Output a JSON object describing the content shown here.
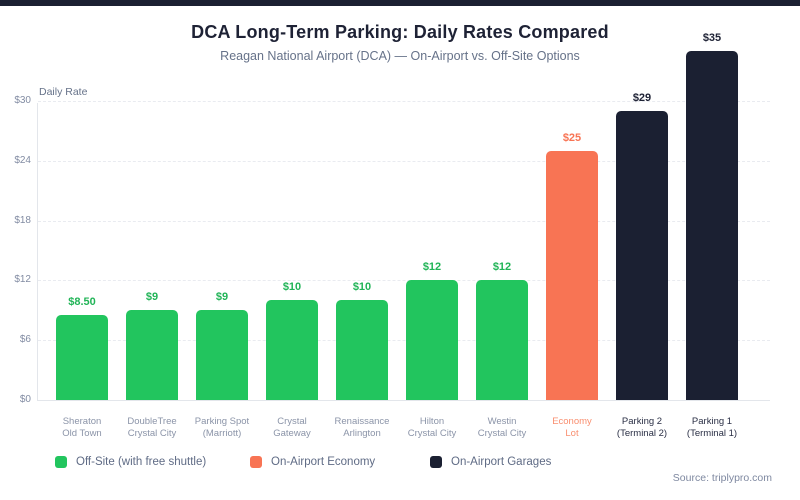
{
  "page": {
    "background_color": "#ffffff",
    "top_bar_color": "#1b2032"
  },
  "header": {
    "title": "DCA Long-Term Parking: Daily Rates Compared",
    "subtitle": "Reagan National Airport (DCA) — On-Airport vs. Off-Site Options"
  },
  "chart_data": {
    "type": "bar",
    "title": "DCA Long-Term Parking: Daily Rates Compared",
    "subtitle": "Reagan National Airport (DCA) — On-Airport vs. Off-Site Options",
    "ylabel": "Daily Rate",
    "xlabel": "",
    "ylim": [
      0,
      30
    ],
    "yticks": [
      0,
      6,
      12,
      18,
      24,
      30
    ],
    "ytick_labels": [
      "$0",
      "$6",
      "$12",
      "$18",
      "$24",
      "$30"
    ],
    "grid": "horizontal-dashed",
    "categories": [
      [
        "Sheraton",
        "Old Town"
      ],
      [
        "DoubleTree",
        "Crystal City"
      ],
      [
        "Parking Spot",
        "(Marriott)"
      ],
      [
        "Crystal",
        "Gateway"
      ],
      [
        "Renaissance",
        "Arlington"
      ],
      [
        "Hilton",
        "Crystal City"
      ],
      [
        "Westin",
        "Crystal City"
      ],
      [
        "Economy",
        "Lot"
      ],
      [
        "Parking 2",
        "(Terminal 2)"
      ],
      [
        "Parking 1",
        "(Terminal 1)"
      ]
    ],
    "values": [
      8.5,
      9,
      9,
      10,
      10,
      12,
      12,
      25,
      29,
      35
    ],
    "value_labels": [
      "$8.50",
      "$9",
      "$9",
      "$10",
      "$10",
      "$12",
      "$12",
      "$25",
      "$29",
      "$35"
    ],
    "groups": [
      "offsite",
      "offsite",
      "offsite",
      "offsite",
      "offsite",
      "offsite",
      "offsite",
      "economy",
      "garage",
      "garage"
    ],
    "group_colors": {
      "offsite": "#22c55e",
      "economy": "#f87454",
      "garage": "#1b2032"
    },
    "value_label_colors": {
      "offsite": "#21b457",
      "economy": "#f87454",
      "garage": "#1e2235"
    },
    "category_label_colors": {
      "offsite": "#8b94a8",
      "economy": "#f98f70",
      "garage": "#2a2f45"
    },
    "legend_position": "bottom",
    "legend": [
      {
        "label": "Off-Site (with free shuttle)",
        "color": "#22c55e"
      },
      {
        "label": "On-Airport Economy",
        "color": "#f87454"
      },
      {
        "label": "On-Airport Garages",
        "color": "#1b2032"
      }
    ]
  },
  "footer": {
    "source": "Source: triplypro.com"
  }
}
